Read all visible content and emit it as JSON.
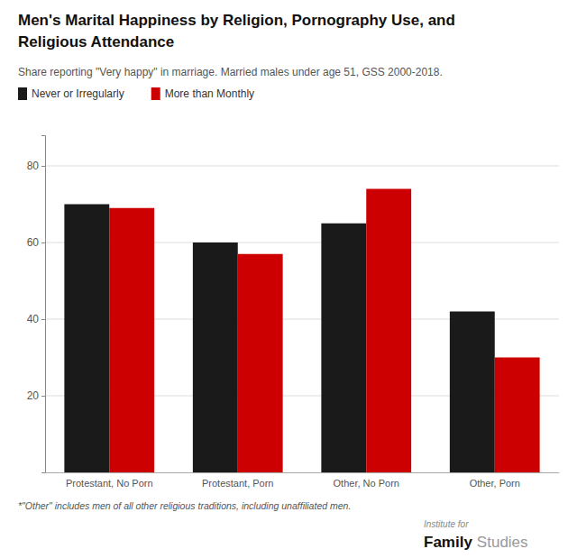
{
  "chart_data": {
    "type": "bar",
    "title": [
      "Men's Marital Happiness by Religion, Pornography Use, and",
      "Religious Attendance"
    ],
    "subtitle": "Share reporting \"Very happy\" in marriage. Married males under age 51, GSS 2000-2018.",
    "annotations": [
      "*\"Other\" includes men of all other religious traditions, including unaffiliated men.",
      "Institute for",
      "Family",
      "Studies"
    ],
    "categories": [
      "Protestant, No Porn",
      "Protestant, Porn",
      "Other, No Porn",
      "Other, Porn"
    ],
    "series": [
      {
        "name": "Never or Irregularly",
        "color": "#1a1a1a",
        "values": [
          70,
          60,
          65,
          42
        ]
      },
      {
        "name": "More than Monthly",
        "color": "#cc0000",
        "values": [
          69,
          57,
          74,
          30
        ]
      }
    ],
    "ylim": [
      0,
      88
    ],
    "yticks": [
      20,
      40,
      60,
      80
    ],
    "grid": true,
    "legend": "top"
  }
}
